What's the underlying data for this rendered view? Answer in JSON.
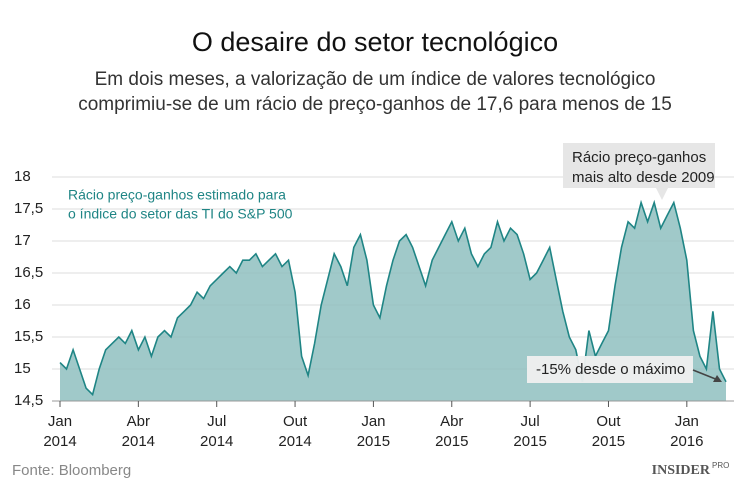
{
  "chart_data": {
    "type": "area",
    "title": "O desaire do setor tecnológico",
    "subtitle": [
      "Em dois meses, a valorização de um índice de valores tecnológico",
      "comprimiu-se de um rácio de preço-ganhos de 17,6 para menos de 15"
    ],
    "series_label": [
      "Rácio preço-ganhos estimado para",
      "o índice do setor das TI do S&P 500"
    ],
    "annotations": [
      [
        "Rácio preço-ganhos",
        "mais alto desde 2009"
      ],
      [
        "-15% desde o máximo"
      ]
    ],
    "source": "Fonte: Bloomberg",
    "logo": "INSIDER",
    "logo_sup": "PRO",
    "color": "#8fc0c0",
    "line_color": "#1f8585",
    "grid": true,
    "x": [
      0,
      0.25,
      0.5,
      0.75,
      1,
      1.25,
      1.5,
      1.75,
      2,
      2.25,
      2.5,
      2.75,
      3,
      3.25,
      3.5,
      3.75,
      4,
      4.25,
      4.5,
      4.75,
      5,
      5.25,
      5.5,
      5.75,
      6,
      6.25,
      6.5,
      6.75,
      7,
      7.25,
      7.5,
      7.75,
      8,
      8.25,
      8.5,
      8.75,
      9,
      9.25,
      9.5,
      9.75,
      10,
      10.25,
      10.5,
      10.75,
      11,
      11.25,
      11.5,
      11.75,
      12,
      12.25,
      12.5,
      12.75,
      13,
      13.25,
      13.5,
      13.75,
      14,
      14.25,
      14.5,
      14.75,
      15,
      15.25,
      15.5,
      15.75,
      16,
      16.25,
      16.5,
      16.75,
      17,
      17.25,
      17.5,
      17.75,
      18,
      18.25,
      18.5,
      18.75,
      19,
      19.25,
      19.5,
      19.75,
      20,
      20.25,
      20.5,
      20.75,
      21,
      21.25,
      21.5,
      21.75,
      22,
      22.25,
      22.5,
      22.75,
      23,
      23.25,
      23.5,
      23.75,
      24,
      24.25,
      24.5,
      24.75,
      25,
      25.25,
      25.5
    ],
    "values": [
      15.1,
      15.0,
      15.3,
      15.0,
      14.7,
      14.6,
      15.0,
      15.3,
      15.4,
      15.5,
      15.4,
      15.6,
      15.3,
      15.5,
      15.2,
      15.5,
      15.6,
      15.5,
      15.8,
      15.9,
      16.0,
      16.2,
      16.1,
      16.3,
      16.4,
      16.5,
      16.6,
      16.5,
      16.7,
      16.7,
      16.8,
      16.6,
      16.7,
      16.8,
      16.6,
      16.7,
      16.2,
      15.2,
      14.9,
      15.4,
      16.0,
      16.4,
      16.8,
      16.6,
      16.3,
      16.9,
      17.1,
      16.7,
      16.0,
      15.8,
      16.3,
      16.7,
      17.0,
      17.1,
      16.9,
      16.6,
      16.3,
      16.7,
      16.9,
      17.1,
      17.3,
      17.0,
      17.2,
      16.8,
      16.6,
      16.8,
      16.9,
      17.3,
      17.0,
      17.2,
      17.1,
      16.8,
      16.4,
      16.5,
      16.7,
      16.9,
      16.4,
      15.9,
      15.5,
      15.3,
      14.8,
      15.6,
      15.2,
      15.4,
      15.6,
      16.3,
      16.9,
      17.3,
      17.2,
      17.6,
      17.3,
      17.6,
      17.2,
      17.4,
      17.6,
      17.2,
      16.7,
      15.6,
      15.2,
      15.0,
      15.9,
      15.0,
      14.8
    ],
    "xlim": [
      0,
      25.5
    ],
    "xticks": [
      {
        "value": 0,
        "label": "Jan\n2014"
      },
      {
        "value": 3,
        "label": "Abr\n2014"
      },
      {
        "value": 6,
        "label": "Jul\n2014"
      },
      {
        "value": 9,
        "label": "Out\n2014"
      },
      {
        "value": 12,
        "label": "Jan\n2015"
      },
      {
        "value": 15,
        "label": "Abr\n2015"
      },
      {
        "value": 18,
        "label": "Jul\n2015"
      },
      {
        "value": 21,
        "label": "Out\n2015"
      },
      {
        "value": 24,
        "label": "Jan\n2016"
      }
    ],
    "ylim": [
      14.5,
      18
    ],
    "yticks": [
      {
        "value": 14.5,
        "label": "14,5"
      },
      15,
      {
        "value": 15.5,
        "label": "15,5"
      },
      16,
      {
        "value": 16.5,
        "label": "16,5"
      },
      17,
      {
        "value": 17.5,
        "label": "17,5"
      },
      18
    ]
  }
}
